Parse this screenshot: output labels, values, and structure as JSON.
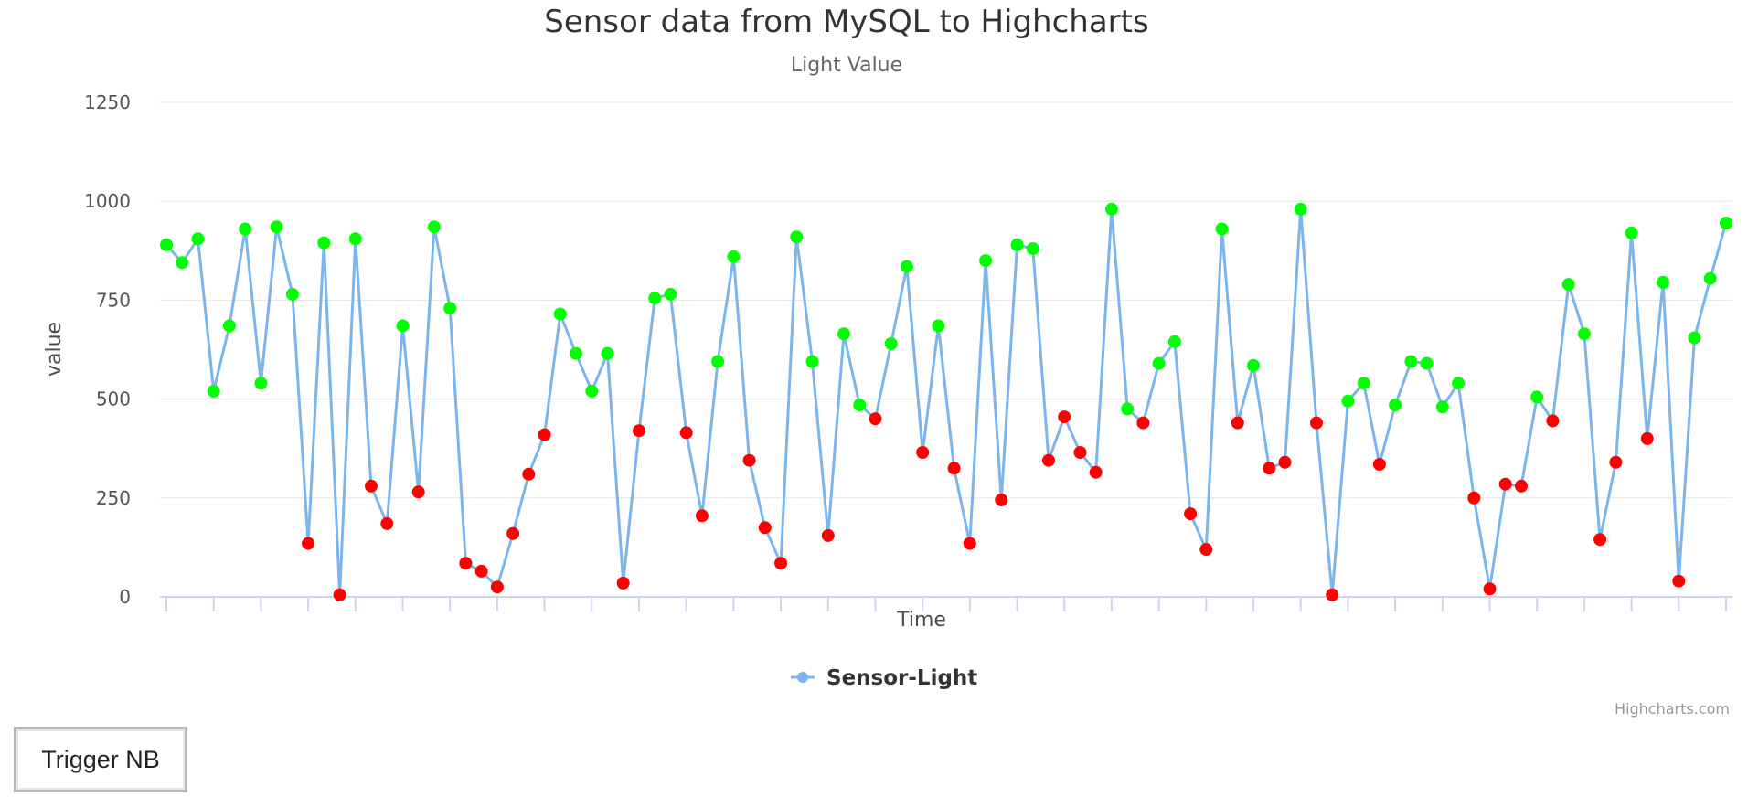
{
  "button": {
    "label": "Trigger NB"
  },
  "credits": "Highcharts.com",
  "colors": {
    "line": "#7cb5ec",
    "high": "#00ff00",
    "low": "#ff0000",
    "grid": "#e6e6e6",
    "axis_line": "#ccd6eb"
  },
  "chart_data": {
    "type": "line",
    "title": "Sensor data from MySQL to Highcharts",
    "subtitle": "Light Value",
    "xlabel": "Time",
    "ylabel": "value",
    "ylim": [
      0,
      1250
    ],
    "yticks": [
      0,
      250,
      500,
      750,
      1000,
      1250
    ],
    "grid": true,
    "legend": "bottom-center",
    "marker_rule": "green when value >= 475, red otherwise",
    "series": [
      {
        "name": "Sensor-Light",
        "values": [
          890,
          845,
          905,
          520,
          685,
          930,
          540,
          935,
          765,
          135,
          895,
          5,
          905,
          280,
          185,
          685,
          265,
          935,
          730,
          85,
          65,
          25,
          160,
          310,
          410,
          715,
          615,
          520,
          615,
          35,
          420,
          755,
          765,
          415,
          205,
          595,
          860,
          345,
          175,
          85,
          910,
          595,
          155,
          665,
          485,
          450,
          640,
          835,
          365,
          685,
          325,
          135,
          850,
          245,
          890,
          880,
          345,
          455,
          365,
          315,
          980,
          475,
          440,
          590,
          645,
          210,
          120,
          930,
          440,
          585,
          325,
          340,
          980,
          440,
          5,
          495,
          540,
          335,
          485,
          595,
          590,
          480,
          540,
          250,
          20,
          285,
          280,
          505,
          445,
          790,
          665,
          145,
          340,
          920,
          400,
          795,
          40,
          655,
          805,
          945
        ]
      }
    ]
  }
}
